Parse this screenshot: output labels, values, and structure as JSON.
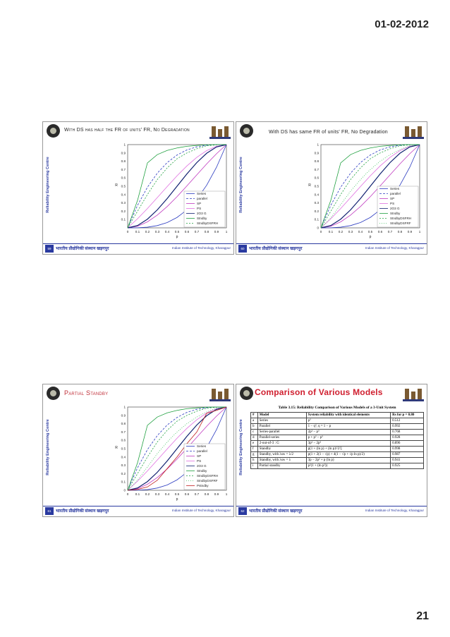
{
  "page": {
    "date": "01-02-2012",
    "page_number": "21"
  },
  "common": {
    "side_label": "Reliability Engineering Centre",
    "footer_hindi": "भारतीय प्रौद्योगिकी संस्थान खड़गपुर",
    "footer_institute": "Indian Institute of Technology, Kharagpur",
    "color_accent": "#2a3aa0",
    "color_title_red": "#d02030"
  },
  "slides": [
    {
      "id": "s1",
      "title": "With DS has half the FR of units' FR, No Degradation",
      "slide_number": "59"
    },
    {
      "id": "s2",
      "title": "With DS has same FR of units' FR, No Degradation",
      "slide_number": "60"
    },
    {
      "id": "s3",
      "title": "Partial Standby",
      "slide_number": "61"
    },
    {
      "id": "s4",
      "title": "Comparison of Various Models",
      "slide_number": "62"
    }
  ],
  "table": {
    "caption": "Table 3.15: Reliability Comparison of Various Models of a 3-Unit System",
    "headers": [
      "#",
      "Model",
      "System reliability with identical elements",
      "Rs for p = 0.80"
    ],
    "rows": [
      [
        "a",
        "Series",
        "p³",
        "0.512"
      ],
      [
        "b",
        "Parallel",
        "1 − q³, q = 1 − p",
        "0.992"
      ],
      [
        "c",
        "Series-parallel",
        "2p² − p³",
        "0.768"
      ],
      [
        "d",
        "Parallel-series",
        "p + p² − p³",
        "0.928"
      ],
      [
        "e",
        "2-out-of-3 : G",
        "3p² − 2p³",
        "0.896"
      ],
      [
        "f",
        "Standby",
        "p[1 + (ln p) + (ln p)²/2!]",
        "0.998"
      ],
      [
        "g",
        "Standby, with λsw = λ/2",
        "p(1 + 2(1 − √p) + 4(1 − √p + √p ln p)/2)",
        "0.987"
      ],
      [
        "h",
        "Standby, with λsw = λ",
        "3p − 2p² + p (ln p)",
        "0.941"
      ],
      [
        "i",
        "Partial standby",
        "p²(1 + (ln p²))",
        "0.925"
      ]
    ]
  },
  "chart_data": [
    {
      "type": "line",
      "title": "",
      "xlabel": "p",
      "ylabel": "R",
      "xlim": [
        0,
        1
      ],
      "ylim": [
        0,
        1
      ],
      "xticks": [
        "0",
        "0.1",
        "0.2",
        "0.3",
        "0.4",
        "0.5",
        "0.6",
        "0.7",
        "0.8",
        "0.9",
        "1"
      ],
      "yticks": [
        "0.1",
        "0.2",
        "0.3",
        "0.4",
        "0.5",
        "0.6",
        "0.7",
        "0.8",
        "0.9",
        "1"
      ],
      "legend_position": "bottom-right",
      "x": [
        0,
        0.1,
        0.2,
        0.3,
        0.4,
        0.5,
        0.6,
        0.7,
        0.8,
        0.9,
        1
      ],
      "series": [
        {
          "name": "Series",
          "color": "#2a3ac0",
          "dash": "",
          "values": [
            0,
            0.001,
            0.008,
            0.027,
            0.064,
            0.125,
            0.216,
            0.343,
            0.512,
            0.729,
            1
          ]
        },
        {
          "name": "parallel",
          "color": "#2a3ac0",
          "dash": "3,2",
          "values": [
            0,
            0.271,
            0.488,
            0.657,
            0.784,
            0.875,
            0.936,
            0.973,
            0.992,
            0.999,
            1
          ]
        },
        {
          "name": "SP",
          "color": "#c03ac0",
          "dash": "",
          "values": [
            0,
            0.019,
            0.072,
            0.153,
            0.256,
            0.375,
            0.504,
            0.637,
            0.768,
            0.891,
            1
          ]
        },
        {
          "name": "PS",
          "color": "#e070e0",
          "dash": "",
          "values": [
            0,
            0.109,
            0.232,
            0.363,
            0.496,
            0.625,
            0.744,
            0.847,
            0.928,
            0.981,
            1
          ]
        },
        {
          "name": "2O3 G",
          "color": "#102070",
          "dash": "",
          "values": [
            0,
            0.028,
            0.104,
            0.216,
            0.352,
            0.5,
            0.648,
            0.784,
            0.896,
            0.972,
            1
          ]
        },
        {
          "name": "Stndby",
          "color": "#20a040",
          "dash": "",
          "values": [
            0,
            0.33,
            0.78,
            0.88,
            0.93,
            0.96,
            0.98,
            0.99,
            0.998,
            1,
            1
          ]
        },
        {
          "name": "StndbyDSFRH",
          "color": "#20a040",
          "dash": "2,2",
          "values": [
            0,
            0.2,
            0.4,
            0.58,
            0.72,
            0.83,
            0.9,
            0.95,
            0.987,
            0.997,
            1
          ]
        }
      ]
    },
    {
      "type": "line",
      "title": "",
      "xlabel": "p",
      "ylabel": "R",
      "xlim": [
        0,
        1
      ],
      "ylim": [
        0,
        1
      ],
      "xticks": [
        "0",
        "0.1",
        "0.2",
        "0.3",
        "0.4",
        "0.5",
        "0.6",
        "0.7",
        "0.8",
        "0.9",
        "1"
      ],
      "yticks": [
        "0",
        "0.1",
        "0.2",
        "0.3",
        "0.4",
        "0.5",
        "0.6",
        "0.7",
        "0.8",
        "0.9",
        "1"
      ],
      "legend_position": "bottom-right",
      "x": [
        0,
        0.1,
        0.2,
        0.3,
        0.4,
        0.5,
        0.6,
        0.7,
        0.8,
        0.9,
        1
      ],
      "series": [
        {
          "name": "Series",
          "color": "#2a3ac0",
          "dash": "",
          "values": [
            0,
            0.001,
            0.008,
            0.027,
            0.064,
            0.125,
            0.216,
            0.343,
            0.512,
            0.729,
            1
          ]
        },
        {
          "name": "parallel",
          "color": "#2a3ac0",
          "dash": "3,2",
          "values": [
            0,
            0.271,
            0.488,
            0.657,
            0.784,
            0.875,
            0.936,
            0.973,
            0.992,
            0.999,
            1
          ]
        },
        {
          "name": "SP",
          "color": "#c03ac0",
          "dash": "",
          "values": [
            0,
            0.019,
            0.072,
            0.153,
            0.256,
            0.375,
            0.504,
            0.637,
            0.768,
            0.891,
            1
          ]
        },
        {
          "name": "PS",
          "color": "#e070e0",
          "dash": "",
          "values": [
            0,
            0.109,
            0.232,
            0.363,
            0.496,
            0.625,
            0.744,
            0.847,
            0.928,
            0.981,
            1
          ]
        },
        {
          "name": "2O3 G",
          "color": "#102070",
          "dash": "",
          "values": [
            0,
            0.028,
            0.104,
            0.216,
            0.352,
            0.5,
            0.648,
            0.784,
            0.896,
            0.972,
            1
          ]
        },
        {
          "name": "Stndby",
          "color": "#20a040",
          "dash": "",
          "values": [
            0,
            0.33,
            0.78,
            0.88,
            0.93,
            0.96,
            0.98,
            0.99,
            0.998,
            1,
            1
          ]
        },
        {
          "name": "StndbyDSFRH",
          "color": "#20a040",
          "dash": "2,2",
          "values": [
            0,
            0.2,
            0.4,
            0.58,
            0.72,
            0.83,
            0.9,
            0.95,
            0.987,
            0.997,
            1
          ]
        },
        {
          "name": "StndbyDSFRF",
          "color": "#40c060",
          "dash": "1,2",
          "values": [
            0,
            0.12,
            0.28,
            0.44,
            0.58,
            0.7,
            0.8,
            0.88,
            0.941,
            0.985,
            1
          ]
        }
      ]
    },
    {
      "type": "line",
      "title": "",
      "xlabel": "p",
      "ylabel": "R",
      "xlim": [
        0,
        1
      ],
      "ylim": [
        0,
        1
      ],
      "xticks": [
        "0",
        "0.1",
        "0.2",
        "0.3",
        "0.4",
        "0.5",
        "0.6",
        "0.7",
        "0.8",
        "0.9",
        "1"
      ],
      "yticks": [
        "0",
        "0.1",
        "0.2",
        "0.3",
        "0.4",
        "0.5",
        "0.6",
        "0.7",
        "0.8",
        "0.9",
        "1"
      ],
      "legend_position": "bottom-right",
      "x": [
        0,
        0.1,
        0.2,
        0.3,
        0.4,
        0.5,
        0.6,
        0.7,
        0.8,
        0.9,
        1
      ],
      "series": [
        {
          "name": "Series",
          "color": "#2a3ac0",
          "dash": "",
          "values": [
            0,
            0.001,
            0.008,
            0.027,
            0.064,
            0.125,
            0.216,
            0.343,
            0.512,
            0.729,
            1
          ]
        },
        {
          "name": "parallel",
          "color": "#2a3ac0",
          "dash": "3,2",
          "values": [
            0,
            0.271,
            0.488,
            0.657,
            0.784,
            0.875,
            0.936,
            0.973,
            0.992,
            0.999,
            1
          ]
        },
        {
          "name": "SP",
          "color": "#c03ac0",
          "dash": "",
          "values": [
            0,
            0.019,
            0.072,
            0.153,
            0.256,
            0.375,
            0.504,
            0.637,
            0.768,
            0.891,
            1
          ]
        },
        {
          "name": "PS",
          "color": "#e070e0",
          "dash": "",
          "values": [
            0,
            0.109,
            0.232,
            0.363,
            0.496,
            0.625,
            0.744,
            0.847,
            0.928,
            0.981,
            1
          ]
        },
        {
          "name": "2O3 G",
          "color": "#102070",
          "dash": "",
          "values": [
            0,
            0.028,
            0.104,
            0.216,
            0.352,
            0.5,
            0.648,
            0.784,
            0.896,
            0.972,
            1
          ]
        },
        {
          "name": "Stndby",
          "color": "#20a040",
          "dash": "",
          "values": [
            0,
            0.33,
            0.78,
            0.88,
            0.93,
            0.96,
            0.98,
            0.99,
            0.998,
            1,
            1
          ]
        },
        {
          "name": "StndbyDSFRH",
          "color": "#20a040",
          "dash": "2,2",
          "values": [
            0,
            0.2,
            0.4,
            0.58,
            0.72,
            0.83,
            0.9,
            0.95,
            0.987,
            0.997,
            1
          ]
        },
        {
          "name": "StndbyDSFRF",
          "color": "#40c060",
          "dash": "1,2",
          "values": [
            0,
            0.12,
            0.28,
            0.44,
            0.58,
            0.7,
            0.8,
            0.88,
            0.941,
            0.985,
            1
          ]
        },
        {
          "name": "Pstndby",
          "color": "#c02020",
          "dash": "",
          "values": [
            0,
            0.01,
            0.04,
            0.12,
            0.26,
            0.4,
            0.56,
            0.7,
            0.925,
            0.96,
            1
          ]
        }
      ]
    }
  ]
}
